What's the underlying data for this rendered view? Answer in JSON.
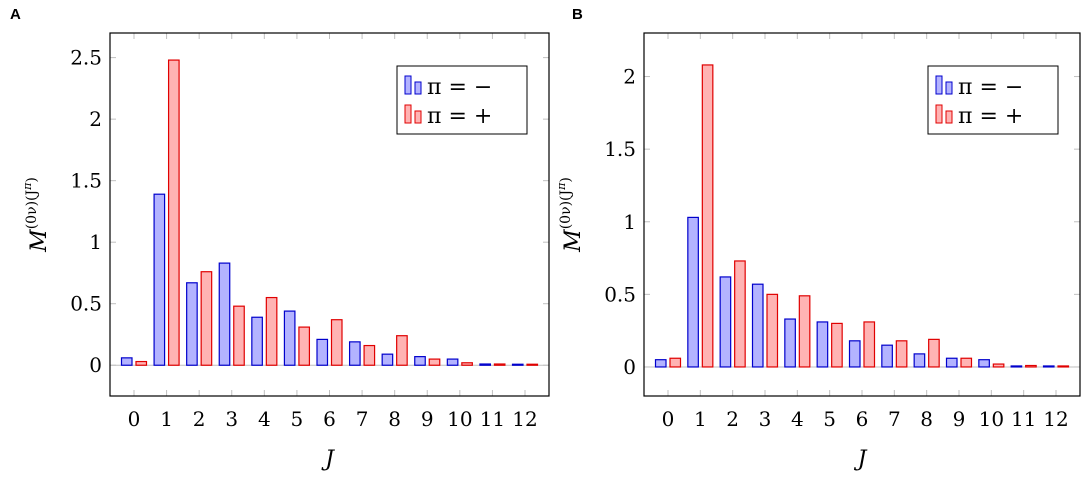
{
  "panels": [
    "A",
    "B"
  ],
  "colors": {
    "minus_fill": "#b3b3ff",
    "minus_stroke": "#0000cc",
    "plus_fill": "#ffb3b3",
    "plus_stroke": "#e00000",
    "grid": "#bfbfbf"
  },
  "chart_data": [
    {
      "type": "bar",
      "panel": "A",
      "title": "",
      "xlabel": "J",
      "ylabel": "M^{(0ν)(J^π)}",
      "categories": [
        "0",
        "1",
        "2",
        "3",
        "4",
        "5",
        "6",
        "7",
        "8",
        "9",
        "10",
        "11",
        "12"
      ],
      "ylim": [
        -0.25,
        2.7
      ],
      "yticks": [
        0,
        0.5,
        1,
        1.5,
        2,
        2.5
      ],
      "ytick_labels": [
        "0",
        "0.5",
        "1",
        "1.5",
        "2",
        "2.5"
      ],
      "legend_position": "top-right",
      "series": [
        {
          "name": "π = −",
          "values": [
            0.06,
            1.39,
            0.67,
            0.83,
            0.39,
            0.44,
            0.21,
            0.19,
            0.09,
            0.07,
            0.05,
            0.01,
            0.003
          ]
        },
        {
          "name": "π = +",
          "values": [
            0.03,
            2.48,
            0.76,
            0.48,
            0.55,
            0.31,
            0.37,
            0.16,
            0.24,
            0.05,
            0.02,
            0.01,
            0.003
          ]
        }
      ]
    },
    {
      "type": "bar",
      "panel": "B",
      "title": "",
      "xlabel": "J",
      "ylabel": "M^{(0ν)(J^π)}",
      "categories": [
        "0",
        "1",
        "2",
        "3",
        "4",
        "5",
        "6",
        "7",
        "8",
        "9",
        "10",
        "11",
        "12"
      ],
      "ylim": [
        -0.2,
        2.3
      ],
      "yticks": [
        0,
        0.5,
        1,
        1.5,
        2
      ],
      "ytick_labels": [
        "0",
        "0.5",
        "1",
        "1.5",
        "2"
      ],
      "legend_position": "top-right",
      "series": [
        {
          "name": "π = −",
          "values": [
            0.05,
            1.03,
            0.62,
            0.57,
            0.33,
            0.31,
            0.18,
            0.15,
            0.09,
            0.06,
            0.05,
            0.005,
            0.002
          ]
        },
        {
          "name": "π = +",
          "values": [
            0.06,
            2.08,
            0.73,
            0.5,
            0.49,
            0.3,
            0.31,
            0.18,
            0.19,
            0.06,
            0.02,
            0.01,
            0.002
          ]
        }
      ]
    }
  ]
}
